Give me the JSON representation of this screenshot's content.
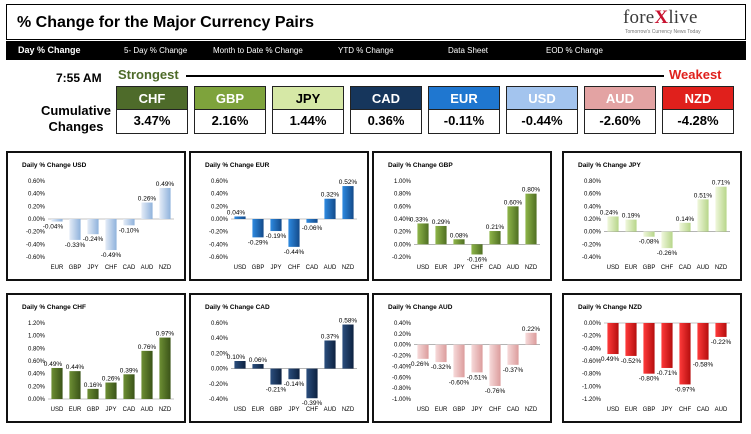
{
  "header": {
    "title": "% Change for the Major Currency Pairs",
    "logo_text_1": "fore",
    "logo_text_2": "X",
    "logo_text_3": "live",
    "logo_tagline": "Tomorrow's Currency News Today"
  },
  "nav": {
    "items": [
      "Day % Change",
      "5- Day % Change",
      "Month to Date % Change",
      "YTD % Change",
      "Data Sheet",
      "EOD % Change"
    ]
  },
  "ranking": {
    "time": "7:55 AM",
    "strongest_label": "Strongest",
    "weakest_label": "Weakest",
    "cumulative_label_1": "Cumulative",
    "cumulative_label_2": "Changes",
    "currencies": [
      {
        "name": "CHF",
        "value": "3.47%",
        "color": "#4e6b2a"
      },
      {
        "name": "GBP",
        "value": "2.16%",
        "color": "#7ea33c"
      },
      {
        "name": "JPY",
        "value": "1.44%",
        "color": "#d6e8a6"
      },
      {
        "name": "CAD",
        "value": "0.36%",
        "color": "#16365c"
      },
      {
        "name": "EUR",
        "value": "-0.11%",
        "color": "#1f77d0"
      },
      {
        "name": "USD",
        "value": "-0.44%",
        "color": "#a3c4ee"
      },
      {
        "name": "AUD",
        "value": "-2.60%",
        "color": "#e3a3a3"
      },
      {
        "name": "NZD",
        "value": "-4.28%",
        "color": "#e0201c"
      }
    ]
  },
  "chart_data": [
    {
      "type": "bar",
      "title": "Daily % Change USD",
      "categories": [
        "EUR",
        "GBP",
        "JPY",
        "CHF",
        "CAD",
        "AUD",
        "NZD"
      ],
      "values": [
        -0.04,
        -0.33,
        -0.24,
        -0.49,
        -0.1,
        0.26,
        0.49
      ],
      "labels": [
        "-0.04%",
        "-0.33%",
        "-0.24%",
        "-0.49%",
        "-0.10%",
        "0.26%",
        "0.49%"
      ],
      "ylim": [
        -0.6,
        0.6
      ],
      "ticks": [
        "0.60%",
        "0.40%",
        "0.20%",
        "0.00%",
        "-0.20%",
        "-0.40%",
        "-0.60%"
      ],
      "color_top": "#e4ecf7",
      "color_bottom": "#8fb2dc"
    },
    {
      "type": "bar",
      "title": "Daily % Change EUR",
      "categories": [
        "USD",
        "GBP",
        "JPY",
        "CHF",
        "CAD",
        "AUD",
        "NZD"
      ],
      "values": [
        0.04,
        -0.29,
        -0.19,
        -0.44,
        -0.06,
        0.32,
        0.52
      ],
      "labels": [
        "0.04%",
        "-0.29%",
        "-0.19%",
        "-0.44%",
        "-0.06%",
        "0.32%",
        "0.52%"
      ],
      "ylim": [
        -0.6,
        0.6
      ],
      "ticks": [
        "0.60%",
        "0.40%",
        "0.20%",
        "0.00%",
        "-0.20%",
        "-0.40%",
        "-0.60%"
      ],
      "color_top": "#2e8ae0",
      "color_bottom": "#134a8a"
    },
    {
      "type": "bar",
      "title": "Daily % Change GBP",
      "categories": [
        "USD",
        "EUR",
        "JPY",
        "CHF",
        "CAD",
        "AUD",
        "NZD"
      ],
      "values": [
        0.33,
        0.29,
        0.08,
        -0.16,
        0.21,
        0.6,
        0.8
      ],
      "labels": [
        "0.33%",
        "0.29%",
        "0.08%",
        "-0.16%",
        "0.21%",
        "0.60%",
        "0.80%"
      ],
      "ylim": [
        -0.2,
        1.0
      ],
      "ticks": [
        "1.00%",
        "0.80%",
        "0.60%",
        "0.40%",
        "0.20%",
        "0.00%",
        "-0.20%"
      ],
      "color_top": "#8fb64a",
      "color_bottom": "#4f6f22"
    },
    {
      "type": "bar",
      "title": "Daily % Change JPY",
      "categories": [
        "USD",
        "EUR",
        "GBP",
        "CHF",
        "CAD",
        "AUD",
        "NZD"
      ],
      "values": [
        0.24,
        0.19,
        -0.08,
        -0.26,
        0.14,
        0.51,
        0.71
      ],
      "labels": [
        "0.24%",
        "0.19%",
        "-0.08%",
        "-0.26%",
        "0.14%",
        "0.51%",
        "0.71%"
      ],
      "ylim": [
        -0.4,
        0.8
      ],
      "ticks": [
        "0.80%",
        "0.60%",
        "0.40%",
        "0.20%",
        "0.00%",
        "-0.20%",
        "-0.40%"
      ],
      "color_top": "#f0f7dc",
      "color_bottom": "#b7d68a"
    },
    {
      "type": "bar",
      "title": "Daily % Change CHF",
      "categories": [
        "USD",
        "EUR",
        "GBP",
        "JPY",
        "CAD",
        "AUD",
        "NZD"
      ],
      "values": [
        0.49,
        0.44,
        0.16,
        0.26,
        0.39,
        0.76,
        0.97
      ],
      "labels": [
        "0.49%",
        "0.44%",
        "0.16%",
        "0.26%",
        "0.39%",
        "0.76%",
        "0.97%"
      ],
      "ylim": [
        0,
        1.2
      ],
      "ticks": [
        "1.20%",
        "1.00%",
        "0.80%",
        "0.60%",
        "0.40%",
        "0.20%",
        "0.00%"
      ],
      "color_top": "#6d8f34",
      "color_bottom": "#3a5318"
    },
    {
      "type": "bar",
      "title": "Daily % Change CAD",
      "categories": [
        "USD",
        "EUR",
        "GBP",
        "JPY",
        "CHF",
        "AUD",
        "NZD"
      ],
      "values": [
        0.1,
        0.06,
        -0.21,
        -0.14,
        -0.39,
        0.37,
        0.58
      ],
      "labels": [
        "0.10%",
        "0.06%",
        "-0.21%",
        "-0.14%",
        "-0.39%",
        "0.37%",
        "0.58%"
      ],
      "ylim": [
        -0.4,
        0.6
      ],
      "ticks": [
        "0.60%",
        "0.40%",
        "0.20%",
        "0.00%",
        "-0.20%",
        "-0.40%"
      ],
      "color_top": "#2b4f7e",
      "color_bottom": "#0d2140"
    },
    {
      "type": "bar",
      "title": "Daily % Change AUD",
      "categories": [
        "USD",
        "EUR",
        "GBP",
        "JPY",
        "CHF",
        "CAD",
        "NZD"
      ],
      "values": [
        -0.26,
        -0.32,
        -0.6,
        -0.51,
        -0.76,
        -0.37,
        0.22
      ],
      "labels": [
        "-0.26%",
        "-0.32%",
        "-0.60%",
        "-0.51%",
        "-0.76%",
        "-0.37%",
        "0.22%"
      ],
      "ylim": [
        -1.0,
        0.4
      ],
      "ticks": [
        "0.40%",
        "0.20%",
        "0.00%",
        "-0.20%",
        "-0.40%",
        "-0.60%",
        "-0.80%",
        "-1.00%"
      ],
      "color_top": "#f6dada",
      "color_bottom": "#dc9c9c"
    },
    {
      "type": "bar",
      "title": "Daily % Change NZD",
      "categories": [
        "USD",
        "EUR",
        "GBP",
        "JPY",
        "CHF",
        "CAD",
        "AUD"
      ],
      "values": [
        -0.49,
        -0.52,
        -0.8,
        -0.71,
        -0.97,
        -0.58,
        -0.22
      ],
      "labels": [
        "-0.49%",
        "-0.52%",
        "-0.80%",
        "-0.71%",
        "-0.97%",
        "-0.58%",
        "-0.22%"
      ],
      "ylim": [
        -1.2,
        0
      ],
      "ticks": [
        "0.00%",
        "-0.20%",
        "-0.40%",
        "-0.60%",
        "-0.80%",
        "-1.00%",
        "-1.20%"
      ],
      "color_top": "#ff3b3b",
      "color_bottom": "#b50d0d"
    }
  ]
}
